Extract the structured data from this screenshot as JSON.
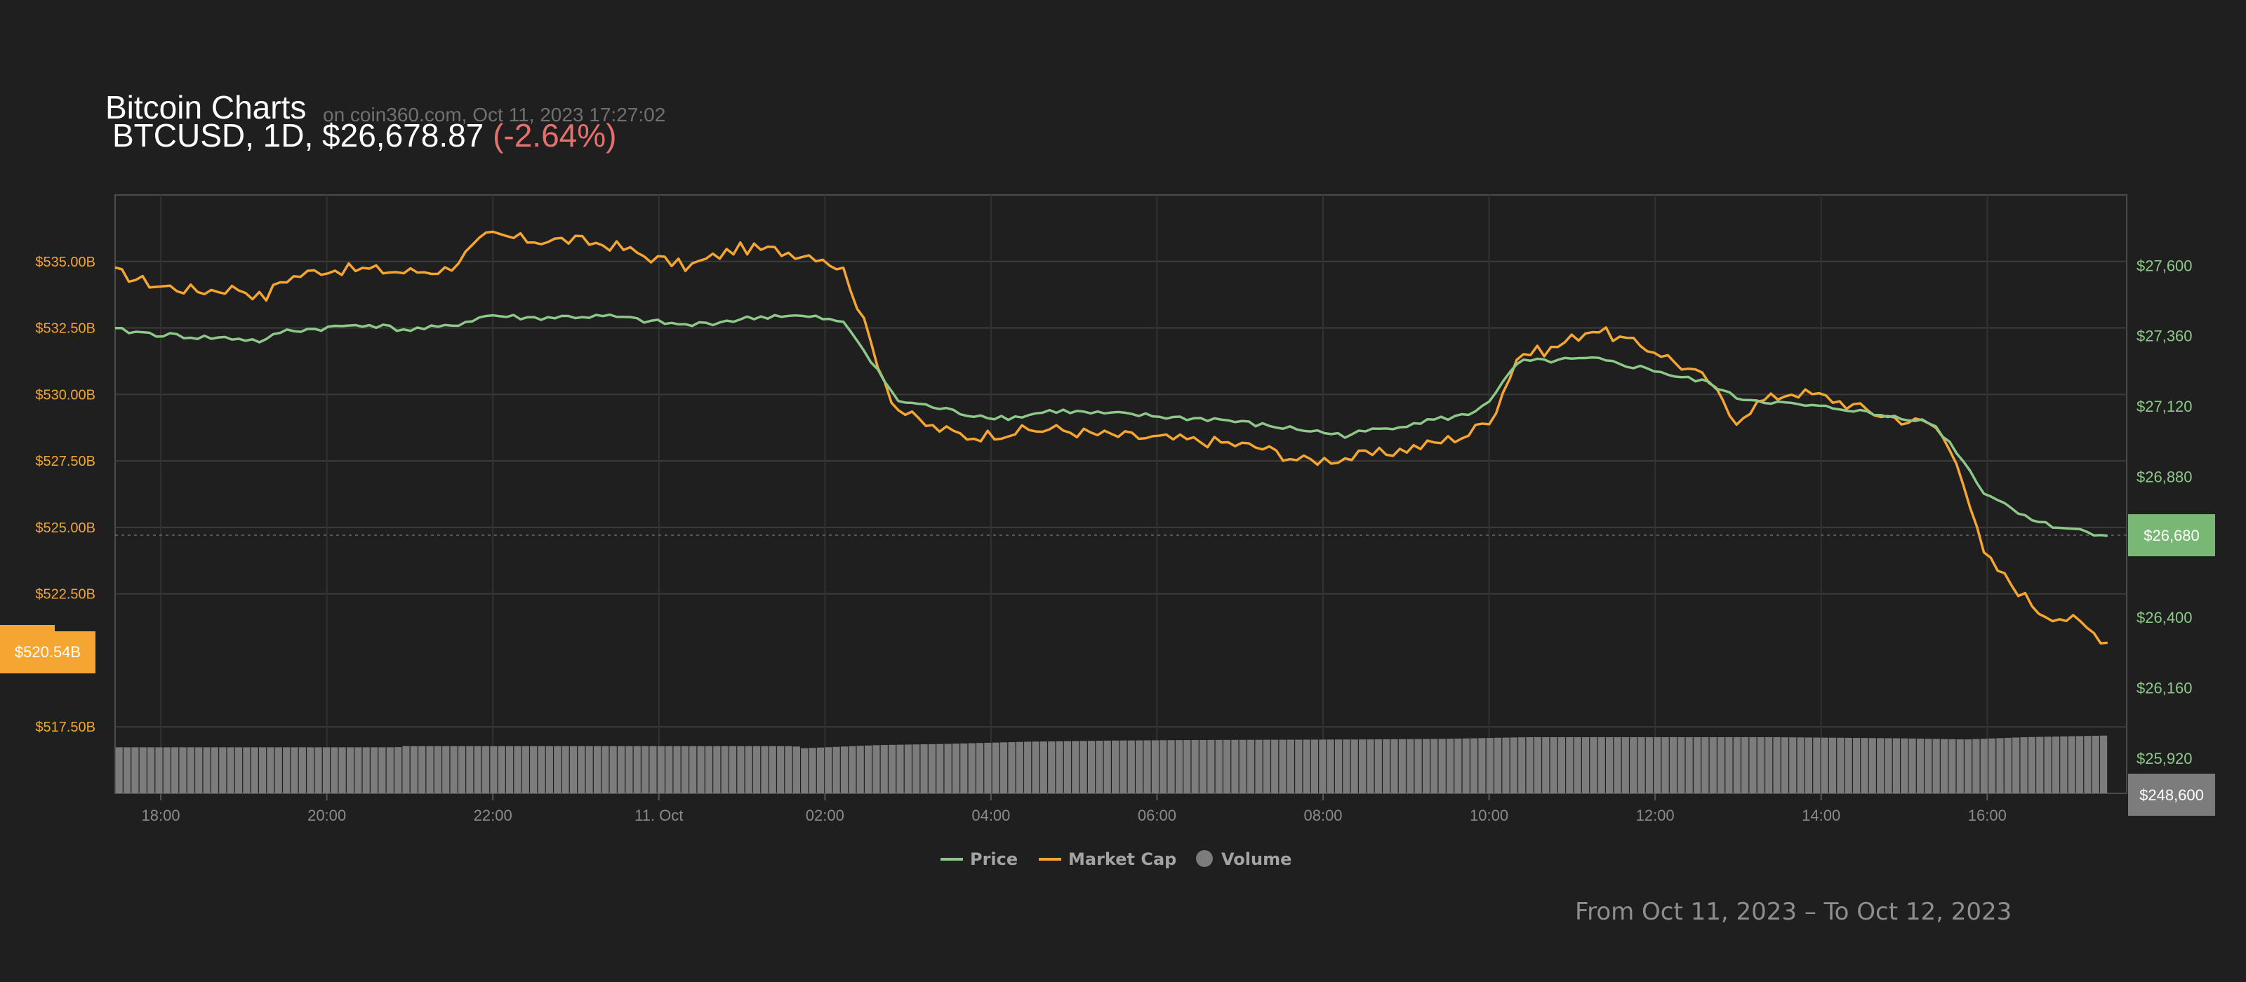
{
  "header": {
    "title": "Bitcoin Charts",
    "source": "on coin360.com, Oct 11, 2023 17:27:02",
    "pair_line": "BTCUSD, 1D, $26,678.87",
    "change": "(-2.64%)"
  },
  "footer": {
    "range": "From Oct 11, 2023 – To Oct 12, 2023"
  },
  "colors": {
    "price": "#8ec888",
    "market_cap": "#f5a531",
    "volume": "#7c7c7c",
    "negative": "#e5706d",
    "grid": "#3b3c3b"
  },
  "chart_data": {
    "type": "line",
    "x_unit": "hours since 17:27 Oct 10",
    "x_ticks": [
      {
        "x": 0.55,
        "label": "18:00"
      },
      {
        "x": 2.55,
        "label": "20:00"
      },
      {
        "x": 4.55,
        "label": "22:00"
      },
      {
        "x": 6.55,
        "label": "11. Oct"
      },
      {
        "x": 8.55,
        "label": "02:00"
      },
      {
        "x": 10.55,
        "label": "04:00"
      },
      {
        "x": 12.55,
        "label": "06:00"
      },
      {
        "x": 14.55,
        "label": "08:00"
      },
      {
        "x": 16.55,
        "label": "10:00"
      },
      {
        "x": 18.55,
        "label": "12:00"
      },
      {
        "x": 20.55,
        "label": "14:00"
      },
      {
        "x": 22.55,
        "label": "16:00"
      }
    ],
    "xlim": [
      0,
      24.23
    ],
    "left_axis": {
      "name": "Market Cap",
      "unit": "billion USD",
      "ticks": [
        "$517.50B",
        "$522.50B",
        "$525.00B",
        "$527.50B",
        "$530.00B",
        "$532.50B",
        "$535.00B"
      ],
      "tick_values": [
        517.5,
        522.5,
        525.0,
        527.5,
        530.0,
        532.5,
        535.0
      ],
      "range": [
        515.0,
        537.5
      ],
      "current_label": "$520.54B",
      "current_value": 520.54
    },
    "right_axis": {
      "name": "Price",
      "unit": "USD",
      "ticks": [
        "$25,920",
        "$26,160",
        "$26,400",
        "$26,880",
        "$27,120",
        "$27,360",
        "$27,600"
      ],
      "tick_values": [
        25920,
        26160,
        26400,
        26880,
        27120,
        27360,
        27600
      ],
      "range": [
        25800,
        27840
      ],
      "current_label": "$26,680",
      "current_value": 26680
    },
    "volume_axis": {
      "current_label": "$248,600"
    },
    "series": [
      {
        "name": "Price",
        "axis": "right",
        "points": [
          [
            0,
            27380
          ],
          [
            0.5,
            27365
          ],
          [
            1,
            27355
          ],
          [
            1.5,
            27350
          ],
          [
            1.8,
            27340
          ],
          [
            2,
            27375
          ],
          [
            2.5,
            27385
          ],
          [
            3,
            27400
          ],
          [
            3.5,
            27380
          ],
          [
            4,
            27390
          ],
          [
            4.5,
            27430
          ],
          [
            5,
            27420
          ],
          [
            5.5,
            27425
          ],
          [
            6,
            27425
          ],
          [
            6.4,
            27410
          ],
          [
            6.9,
            27395
          ],
          [
            7.5,
            27415
          ],
          [
            8,
            27430
          ],
          [
            8.5,
            27420
          ],
          [
            8.8,
            27400
          ],
          [
            9.2,
            27240
          ],
          [
            9.4,
            27140
          ],
          [
            9.8,
            27120
          ],
          [
            10.3,
            27090
          ],
          [
            10.8,
            27080
          ],
          [
            11.3,
            27105
          ],
          [
            11.8,
            27095
          ],
          [
            12.3,
            27090
          ],
          [
            12.8,
            27080
          ],
          [
            13.3,
            27075
          ],
          [
            13.8,
            27055
          ],
          [
            14.3,
            27040
          ],
          [
            14.8,
            27020
          ],
          [
            15.3,
            27045
          ],
          [
            15.8,
            27070
          ],
          [
            16.3,
            27090
          ],
          [
            16.6,
            27150
          ],
          [
            16.9,
            27270
          ],
          [
            17.3,
            27275
          ],
          [
            17.8,
            27280
          ],
          [
            18.2,
            27260
          ],
          [
            18.6,
            27240
          ],
          [
            18.8,
            27220
          ],
          [
            19.2,
            27200
          ],
          [
            19.5,
            27150
          ],
          [
            19.8,
            27140
          ],
          [
            20.2,
            27125
          ],
          [
            20.6,
            27115
          ],
          [
            20.9,
            27110
          ],
          [
            21.2,
            27090
          ],
          [
            21.6,
            27080
          ],
          [
            21.9,
            27060
          ],
          [
            22.2,
            26960
          ],
          [
            22.5,
            26830
          ],
          [
            22.8,
            26780
          ],
          [
            23.2,
            26720
          ],
          [
            23.6,
            26700
          ],
          [
            24,
            26680
          ]
        ]
      },
      {
        "name": "Market Cap",
        "axis": "left",
        "points": [
          [
            0,
            534.6
          ],
          [
            0.5,
            534.1
          ],
          [
            1,
            533.9
          ],
          [
            1.5,
            534.0
          ],
          [
            1.8,
            533.6
          ],
          [
            2,
            534.3
          ],
          [
            2.5,
            534.7
          ],
          [
            3,
            534.7
          ],
          [
            3.5,
            534.6
          ],
          [
            4,
            534.7
          ],
          [
            4.5,
            536.0
          ],
          [
            5,
            535.8
          ],
          [
            5.5,
            535.8
          ],
          [
            6,
            535.6
          ],
          [
            6.4,
            535.2
          ],
          [
            6.9,
            534.8
          ],
          [
            7.5,
            535.5
          ],
          [
            8,
            535.4
          ],
          [
            8.5,
            535.2
          ],
          [
            8.8,
            534.6
          ],
          [
            9.2,
            531.1
          ],
          [
            9.4,
            529.5
          ],
          [
            9.8,
            528.8
          ],
          [
            10.3,
            528.4
          ],
          [
            10.8,
            528.6
          ],
          [
            11.3,
            528.7
          ],
          [
            11.8,
            528.5
          ],
          [
            12.3,
            528.4
          ],
          [
            12.8,
            528.3
          ],
          [
            13.3,
            528.2
          ],
          [
            13.8,
            528.0
          ],
          [
            14.3,
            527.5
          ],
          [
            14.8,
            527.6
          ],
          [
            15.3,
            527.8
          ],
          [
            15.8,
            528.1
          ],
          [
            16.3,
            528.5
          ],
          [
            16.6,
            529.2
          ],
          [
            16.9,
            531.5
          ],
          [
            17.3,
            531.7
          ],
          [
            17.8,
            532.5
          ],
          [
            18.2,
            532.0
          ],
          [
            18.6,
            531.6
          ],
          [
            18.8,
            531.2
          ],
          [
            19.2,
            530.5
          ],
          [
            19.5,
            529.0
          ],
          [
            19.8,
            529.7
          ],
          [
            20.2,
            530.1
          ],
          [
            20.6,
            529.9
          ],
          [
            20.9,
            529.6
          ],
          [
            21.2,
            529.3
          ],
          [
            21.6,
            529.0
          ],
          [
            21.9,
            528.9
          ],
          [
            22.2,
            527.5
          ],
          [
            22.5,
            524.0
          ],
          [
            22.8,
            523.0
          ],
          [
            23.2,
            521.8
          ],
          [
            23.6,
            521.5
          ],
          [
            24,
            520.7
          ]
        ]
      },
      {
        "name": "Volume",
        "axis": "volume",
        "points": [
          [
            0,
            0.82
          ],
          [
            3.4,
            0.82
          ],
          [
            3.45,
            0.84
          ],
          [
            8.2,
            0.84
          ],
          [
            8.25,
            0.8
          ],
          [
            9.2,
            0.86
          ],
          [
            10,
            0.88
          ],
          [
            11,
            0.92
          ],
          [
            12,
            0.94
          ],
          [
            13,
            0.95
          ],
          [
            15,
            0.96
          ],
          [
            16,
            0.97
          ],
          [
            17,
            1.0
          ],
          [
            20,
            1.0
          ],
          [
            21.5,
            0.98
          ],
          [
            22.3,
            0.96
          ],
          [
            23,
            1.0
          ],
          [
            24,
            1.03
          ]
        ]
      }
    ],
    "legend": [
      {
        "label": "Price",
        "color": "#8ec888",
        "marker": "line"
      },
      {
        "label": "Market Cap",
        "color": "#f5a531",
        "marker": "line"
      },
      {
        "label": "Volume",
        "color": "#7c7c7c",
        "marker": "circle"
      }
    ]
  }
}
